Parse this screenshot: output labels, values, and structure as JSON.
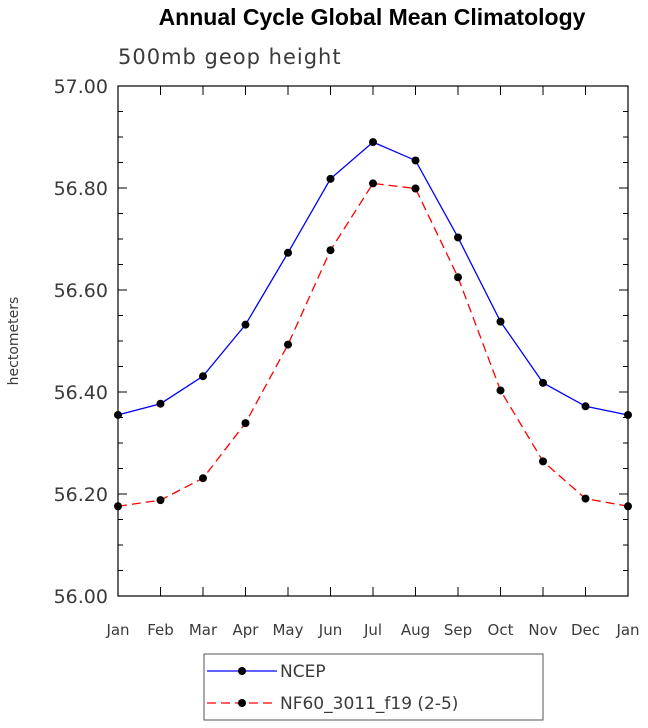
{
  "chart_data": {
    "type": "line",
    "title": "Annual Cycle Global Mean Climatology",
    "subtitle": "500mb geop height",
    "xlabel": "",
    "ylabel": "hectometers",
    "categories": [
      "Jan",
      "Feb",
      "Mar",
      "Apr",
      "May",
      "Jun",
      "Jul",
      "Aug",
      "Sep",
      "Oct",
      "Nov",
      "Dec",
      "Jan"
    ],
    "ylim": [
      56.0,
      57.0
    ],
    "yticks": [
      "56.00",
      "56.20",
      "56.40",
      "56.60",
      "56.80",
      "57.00"
    ],
    "series": [
      {
        "name": "NCEP",
        "color": "#0000ff",
        "dash": "solid",
        "values": [
          56.355,
          56.377,
          56.431,
          56.532,
          56.673,
          56.818,
          56.89,
          56.854,
          56.703,
          56.538,
          56.418,
          56.372,
          56.355
        ]
      },
      {
        "name": "NF60_3011_f19 (2-5)",
        "color": "#ff0000",
        "dash": "dashed",
        "values": [
          56.176,
          56.188,
          56.231,
          56.339,
          56.493,
          56.678,
          56.809,
          56.799,
          56.625,
          56.403,
          56.264,
          56.191,
          56.176
        ]
      }
    ],
    "grid": false,
    "legend_position": "bottom-center"
  }
}
